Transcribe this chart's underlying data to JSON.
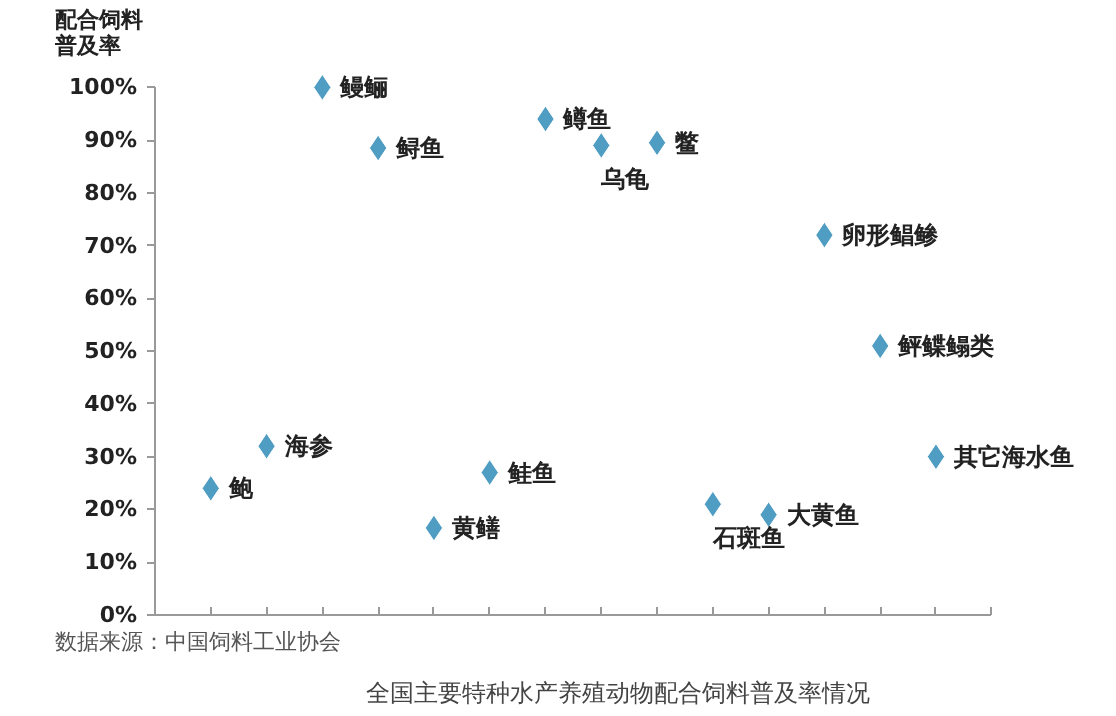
{
  "chart_data": {
    "type": "scatter",
    "title": "全国主要特种水产养殖动物配合饲料普及率情况",
    "ylabel": "配合饲料普及率",
    "categories": [
      null,
      null,
      null,
      null,
      null,
      null,
      null,
      null,
      null,
      null,
      null,
      null,
      null,
      null
    ],
    "series": [
      {
        "color": "#4f9dc3",
        "values": [
          24,
          32,
          100,
          88.5,
          16.5,
          27,
          94,
          89,
          89.5,
          21,
          19,
          72,
          51,
          30
        ]
      }
    ],
    "value_labels": [
      "鲍",
      "海参",
      "鳗鲡",
      "鲟鱼",
      "黄鳝",
      "鲑鱼",
      "鳟鱼",
      "乌龟",
      "鳖",
      "石斑鱼",
      "大黄鱼",
      "卵形鲳鲹",
      "鲆鲽鳎类",
      "其它海水鱼"
    ],
    "ylim": [
      0,
      100
    ],
    "yticks": [
      {
        "value": 0,
        "label": "0%"
      },
      {
        "value": 10,
        "label": "10%"
      },
      {
        "value": 20,
        "label": "20%"
      },
      {
        "value": 30,
        "label": "30%"
      },
      {
        "value": 40,
        "label": "40%"
      },
      {
        "value": 50,
        "label": "50%"
      },
      {
        "value": 60,
        "label": "60%"
      },
      {
        "value": 70,
        "label": "70%"
      },
      {
        "value": 80,
        "label": "80%"
      },
      {
        "value": 90,
        "label": "90%"
      },
      {
        "value": 100,
        "label": "100%"
      }
    ],
    "tick_labels": "y",
    "grid": false,
    "marker": "diamond",
    "annotations": [
      "数据来源：中国饲料工业协会"
    ]
  }
}
